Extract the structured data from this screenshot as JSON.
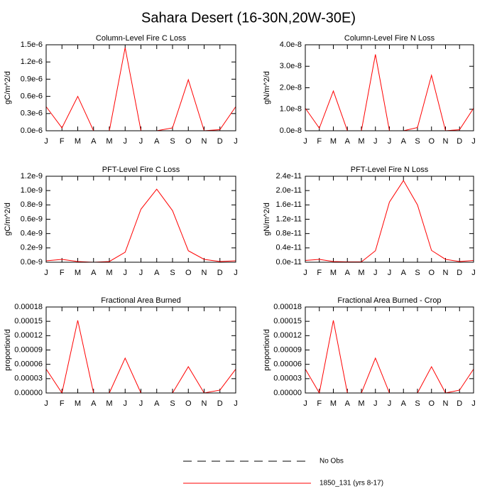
{
  "title": "Sahara Desert (16-30N,20W-30E)",
  "legend": [
    {
      "label": "No Obs",
      "color": "#000000",
      "dash": true
    },
    {
      "label": "1850_131 (yrs 8-17)",
      "color": "#ff0000",
      "dash": false
    }
  ],
  "chart_data": [
    {
      "type": "line",
      "title": "Column-Level Fire C Loss",
      "ylabel": "gC/m^2/d",
      "categories": [
        "J",
        "F",
        "M",
        "A",
        "M",
        "J",
        "J",
        "A",
        "S",
        "O",
        "N",
        "D",
        "J"
      ],
      "values": [
        4.2e-07,
        5e-08,
        6e-07,
        0,
        0,
        1.45e-06,
        0,
        0,
        5e-08,
        8.9e-07,
        0,
        2e-08,
        4.2e-07
      ],
      "color": "#ff0000",
      "ylim": [
        0,
        1.5e-06
      ],
      "yticks": [
        {
          "value": 0,
          "label": "0.0e-6"
        },
        {
          "value": 3e-07,
          "label": "0.3e-6"
        },
        {
          "value": 6e-07,
          "label": "0.6e-6"
        },
        {
          "value": 9e-07,
          "label": "0.9e-6"
        },
        {
          "value": 1.2e-06,
          "label": "1.2e-6"
        },
        {
          "value": 1.5e-06,
          "label": "1.5e-6"
        }
      ]
    },
    {
      "type": "line",
      "title": "Column-Level Fire N Loss",
      "ylabel": "gN/m^2/d",
      "categories": [
        "J",
        "F",
        "M",
        "A",
        "M",
        "J",
        "J",
        "A",
        "S",
        "O",
        "N",
        "D",
        "J"
      ],
      "values": [
        1.05e-08,
        1.2e-09,
        1.85e-08,
        0,
        0,
        3.55e-08,
        0,
        0,
        1.5e-09,
        2.58e-08,
        0,
        5e-10,
        1.05e-08
      ],
      "color": "#ff0000",
      "ylim": [
        0,
        4e-08
      ],
      "yticks": [
        {
          "value": 0,
          "label": "0.0e-8"
        },
        {
          "value": 1e-08,
          "label": "1.0e-8"
        },
        {
          "value": 2e-08,
          "label": "2.0e-8"
        },
        {
          "value": 3e-08,
          "label": "3.0e-8"
        },
        {
          "value": 4e-08,
          "label": "4.0e-8"
        }
      ]
    },
    {
      "type": "line",
      "title": "PFT-Level Fire C Loss",
      "ylabel": "gC/m^2/d",
      "categories": [
        "J",
        "F",
        "M",
        "A",
        "M",
        "J",
        "J",
        "A",
        "S",
        "O",
        "N",
        "D",
        "J"
      ],
      "values": [
        2e-11,
        4e-11,
        1e-11,
        0,
        1e-11,
        1.4e-10,
        7.4e-10,
        1.02e-09,
        7.2e-10,
        1.6e-10,
        4e-11,
        1e-11,
        2e-11
      ],
      "color": "#ff0000",
      "ylim": [
        0,
        1.2e-09
      ],
      "yticks": [
        {
          "value": 0,
          "label": "0.0e-9"
        },
        {
          "value": 2e-10,
          "label": "0.2e-9"
        },
        {
          "value": 4e-10,
          "label": "0.4e-9"
        },
        {
          "value": 6e-10,
          "label": "0.6e-9"
        },
        {
          "value": 8e-10,
          "label": "0.8e-9"
        },
        {
          "value": 1e-09,
          "label": "1.0e-9"
        },
        {
          "value": 1.2e-09,
          "label": "1.2e-9"
        }
      ]
    },
    {
      "type": "line",
      "title": "PFT-Level Fire N Loss",
      "ylabel": "gN/m^2/d",
      "categories": [
        "J",
        "F",
        "M",
        "A",
        "M",
        "J",
        "J",
        "A",
        "S",
        "O",
        "N",
        "D",
        "J"
      ],
      "values": [
        5e-13,
        8e-13,
        2e-13,
        1e-13,
        1e-13,
        3.2e-12,
        1.68e-11,
        2.28e-11,
        1.6e-11,
        3.3e-12,
        8e-13,
        2e-13,
        5e-13
      ],
      "color": "#ff0000",
      "ylim": [
        0,
        2.4e-11
      ],
      "yticks": [
        {
          "value": 0,
          "label": "0.0e-11"
        },
        {
          "value": 4e-12,
          "label": "0.4e-11"
        },
        {
          "value": 8e-12,
          "label": "0.8e-11"
        },
        {
          "value": 1.2e-11,
          "label": "1.2e-11"
        },
        {
          "value": 1.6e-11,
          "label": "1.6e-11"
        },
        {
          "value": 2e-11,
          "label": "2.0e-11"
        },
        {
          "value": 2.4e-11,
          "label": "2.4e-11"
        }
      ]
    },
    {
      "type": "line",
      "title": "Fractional Area Burned",
      "ylabel": "proportion/d",
      "categories": [
        "J",
        "F",
        "M",
        "A",
        "M",
        "J",
        "J",
        "A",
        "S",
        "O",
        "N",
        "D",
        "J"
      ],
      "values": [
        5e-05,
        0,
        0.000152,
        0,
        0,
        7.3e-05,
        0,
        0,
        0,
        5.5e-05,
        0,
        6e-06,
        5e-05
      ],
      "color": "#ff0000",
      "ylim": [
        0,
        0.00018
      ],
      "yticks": [
        {
          "value": 0,
          "label": "0.00000"
        },
        {
          "value": 3e-05,
          "label": "0.00003"
        },
        {
          "value": 6e-05,
          "label": "0.00006"
        },
        {
          "value": 9e-05,
          "label": "0.00009"
        },
        {
          "value": 0.00012,
          "label": "0.00012"
        },
        {
          "value": 0.00015,
          "label": "0.00015"
        },
        {
          "value": 0.00018,
          "label": "0.00018"
        }
      ]
    },
    {
      "type": "line",
      "title": "Fractional Area Burned - Crop",
      "ylabel": "proportion/d",
      "categories": [
        "J",
        "F",
        "M",
        "A",
        "M",
        "J",
        "J",
        "A",
        "S",
        "O",
        "N",
        "D",
        "J"
      ],
      "values": [
        5e-05,
        0,
        0.000152,
        0,
        0,
        7.3e-05,
        0,
        0,
        0,
        5.5e-05,
        0,
        6e-06,
        5e-05
      ],
      "color": "#ff0000",
      "ylim": [
        0,
        0.00018
      ],
      "yticks": [
        {
          "value": 0,
          "label": "0.00000"
        },
        {
          "value": 3e-05,
          "label": "0.00003"
        },
        {
          "value": 6e-05,
          "label": "0.00006"
        },
        {
          "value": 9e-05,
          "label": "0.00009"
        },
        {
          "value": 0.00012,
          "label": "0.00012"
        },
        {
          "value": 0.00015,
          "label": "0.00015"
        },
        {
          "value": 0.00018,
          "label": "0.00018"
        }
      ]
    }
  ]
}
